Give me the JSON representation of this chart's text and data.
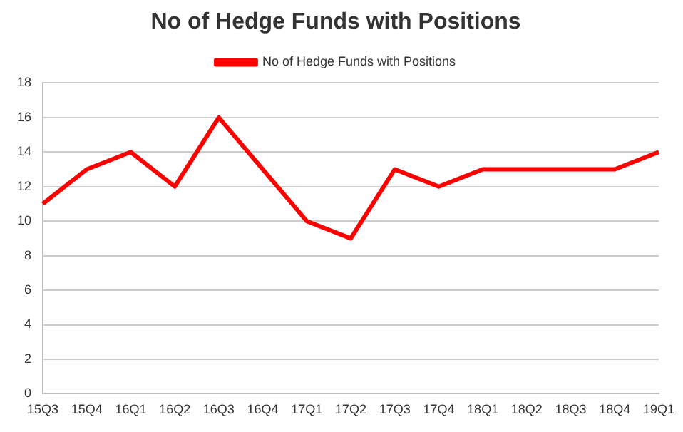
{
  "chart_data": {
    "type": "line",
    "title": "No of Hedge Funds with Positions",
    "categories": [
      "15Q3",
      "15Q4",
      "16Q1",
      "16Q2",
      "16Q3",
      "16Q4",
      "17Q1",
      "17Q2",
      "17Q3",
      "17Q4",
      "18Q1",
      "18Q2",
      "18Q3",
      "18Q4",
      "19Q1"
    ],
    "series": [
      {
        "name": "No of Hedge Funds with Positions",
        "color": "#ff0000",
        "values": [
          11,
          13,
          14,
          12,
          16,
          13,
          10,
          9,
          13,
          12,
          13,
          13,
          13,
          13,
          14
        ]
      }
    ],
    "ylim": [
      0,
      18
    ],
    "yticks": [
      0,
      2,
      4,
      6,
      8,
      10,
      12,
      14,
      16,
      18
    ],
    "grid": "y",
    "legend": "top",
    "marker": "none",
    "line_style": "solid"
  }
}
